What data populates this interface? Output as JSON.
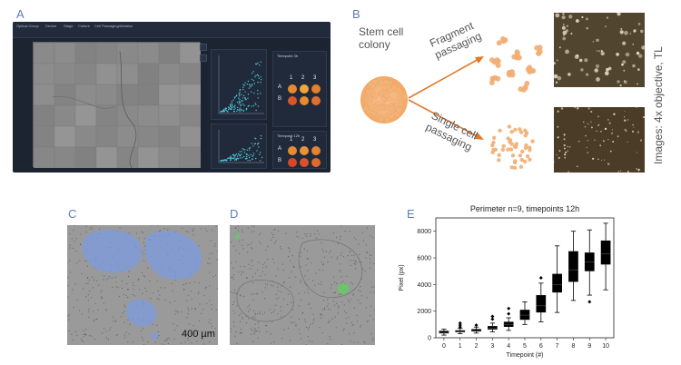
{
  "panels": {
    "a": "A",
    "b": "B",
    "c": "C",
    "d": "D",
    "e": "E"
  },
  "screen": {
    "top_items": [
      "Optical Group",
      "Device",
      "Stage",
      "Culture",
      "Cell Passaging/Ablation"
    ],
    "plate_titles": [
      "Timepoint 3h",
      "Timepoint 12h"
    ],
    "rows": [
      "A",
      "B"
    ],
    "cols": [
      "1",
      "2",
      "3"
    ],
    "well_colors": {
      "top_a": [
        "#e8892e",
        "#f0a53a",
        "#e67e2a"
      ],
      "top_b": [
        "#d9552a",
        "#e8892e",
        "#e07030"
      ],
      "bot_a": [
        "#ea8a30",
        "#e89436",
        "#e58130"
      ],
      "bot_b": [
        "#d9472a",
        "#d8532b",
        "#e06a2c"
      ]
    },
    "mini_axis_labels": [
      "Pixel count",
      "Perimeter"
    ]
  },
  "diagram": {
    "colony_label": "Stem cell\ncolony",
    "fragment_label": "Fragment\npassaging",
    "single_label": "Single cell\npassaging",
    "side_label": "Images: 4x objective, TL",
    "orange": "#e8883a"
  },
  "scalebar": "400 µm",
  "chart_data": {
    "type": "box",
    "title": "Perimeter n=9, timepoints 12h",
    "xlabel": "Timepoint (#)",
    "ylabel": "Pixel (px)",
    "categories": [
      "0",
      "1",
      "2",
      "3",
      "4",
      "5",
      "6",
      "7",
      "8",
      "9",
      "10"
    ],
    "ylim": [
      0,
      9000
    ],
    "yticks": [
      0,
      2000,
      4000,
      6000,
      8000
    ],
    "boxes": [
      {
        "min": 200,
        "q1": 330,
        "median": 400,
        "q3": 520,
        "max": 650,
        "fliers": []
      },
      {
        "min": 300,
        "q1": 420,
        "median": 480,
        "q3": 560,
        "max": 700,
        "fliers": [
          800,
          950,
          1100
        ]
      },
      {
        "min": 350,
        "q1": 470,
        "median": 530,
        "q3": 650,
        "max": 800,
        "fliers": [
          950
        ]
      },
      {
        "min": 450,
        "q1": 620,
        "median": 720,
        "q3": 880,
        "max": 1100,
        "fliers": [
          1400,
          1600
        ]
      },
      {
        "min": 550,
        "q1": 820,
        "median": 1000,
        "q3": 1200,
        "max": 1500,
        "fliers": [
          1800,
          2200
        ]
      },
      {
        "min": 1000,
        "q1": 1350,
        "median": 1700,
        "q3": 2100,
        "max": 2700,
        "fliers": []
      },
      {
        "min": 1200,
        "q1": 1900,
        "median": 2400,
        "q3": 3200,
        "max": 4100,
        "fliers": [
          4500
        ]
      },
      {
        "min": 1900,
        "q1": 3400,
        "median": 4000,
        "q3": 4800,
        "max": 6900,
        "fliers": []
      },
      {
        "min": 2800,
        "q1": 4200,
        "median": 5100,
        "q3": 6500,
        "max": 8000,
        "fliers": []
      },
      {
        "min": 3200,
        "q1": 5000,
        "median": 5700,
        "q3": 6400,
        "max": 8100,
        "fliers": [
          2700
        ]
      },
      {
        "min": 3600,
        "q1": 5500,
        "median": 6300,
        "q3": 7300,
        "max": 8600,
        "fliers": []
      }
    ]
  }
}
